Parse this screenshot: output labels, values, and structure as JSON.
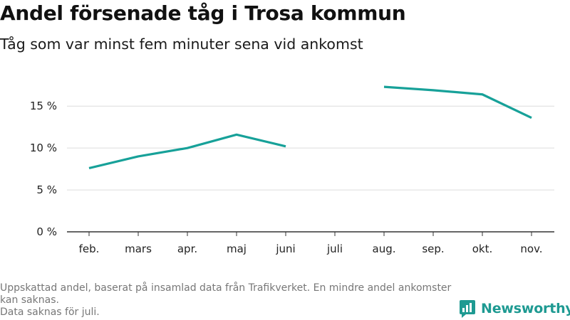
{
  "title": "Andel försenade tåg i Trosa kommun",
  "subtitle": "Tåg som var minst fem minuter sena vid ankomst",
  "footer": {
    "line1": "Uppskattad andel, baserat på insamlad data från Trafikverket. En mindre andel ankomster kan saknas.",
    "line2": "Data saknas för juli."
  },
  "brand": {
    "name": "Newsworthy",
    "color": "#1e9a92"
  },
  "chart_data": {
    "type": "line",
    "categories": [
      "feb.",
      "mars",
      "apr.",
      "maj",
      "juni",
      "juli",
      "aug.",
      "sep.",
      "okt.",
      "nov."
    ],
    "series": [
      {
        "values": [
          7.6,
          9.0,
          10.0,
          11.6,
          10.2,
          null,
          17.3,
          16.9,
          16.4,
          13.6
        ],
        "color": "#17a199"
      }
    ],
    "yticks": [
      0,
      5,
      10,
      15
    ],
    "ytick_labels": [
      "0 %",
      "5 %",
      "10 %",
      "15 %"
    ],
    "ylim": [
      0,
      18.5
    ],
    "grid": true,
    "xlabel": "",
    "ylabel": ""
  }
}
